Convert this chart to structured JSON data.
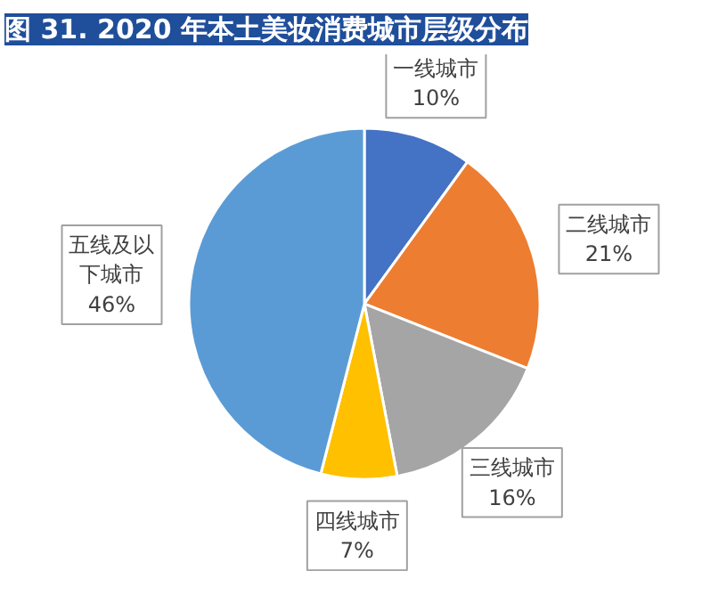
{
  "chart_data": {
    "type": "pie",
    "title": "图 31. 2020 年本土美妆消费城市层级分布",
    "categories": [
      "一线城市",
      "二线城市",
      "三线城市",
      "四线城市",
      "五线及以下城市"
    ],
    "values": [
      10,
      21,
      16,
      7,
      46
    ],
    "value_labels": [
      "10%",
      "21%",
      "16%",
      "7%",
      "46%"
    ],
    "colors": [
      "#4472c4",
      "#ed7d31",
      "#a5a5a5",
      "#ffc000",
      "#5b9bd5"
    ]
  }
}
